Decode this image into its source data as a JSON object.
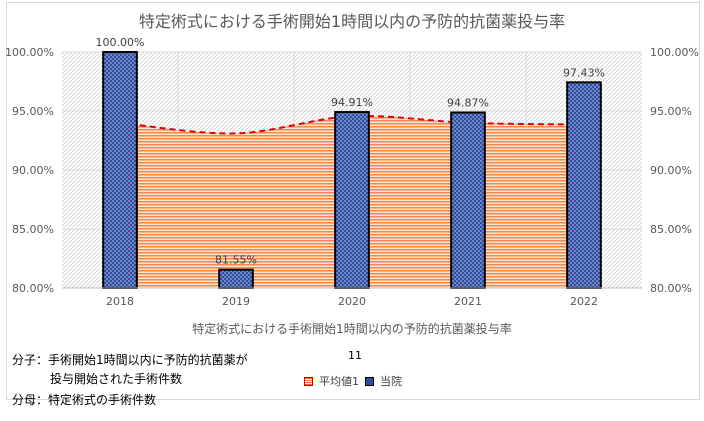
{
  "chart_data": {
    "type": "bar",
    "title": "特定術式における手術開始1時間以内の予防的抗菌薬投与率",
    "categories": [
      "2018",
      "2019",
      "2020",
      "2021",
      "2022"
    ],
    "series": [
      {
        "name": "当院",
        "kind": "bar",
        "values": [
          100.0,
          81.55,
          94.91,
          94.87,
          97.43
        ]
      },
      {
        "name": "平均値1",
        "kind": "area",
        "values": [
          94.0,
          93.1,
          94.55,
          94.0,
          93.85
        ]
      }
    ],
    "data_labels": [
      "100.00%",
      "81.55%",
      "94.91%",
      "94.87%",
      "97.43%"
    ],
    "y_ticks": [
      "100.00%",
      "95.00%",
      "90.00%",
      "85.00%",
      "80.00%"
    ],
    "ylim": [
      80,
      100
    ],
    "xlabel": "特定術式における手術開始1時間以内の予防的抗菌薬投与率",
    "ylabel": "",
    "legend_placement": "bottom",
    "grid": true,
    "colors": {
      "bar": "#2f4f9d",
      "area": "#ef8a4a",
      "line": "#e60000"
    }
  },
  "legend_number": "11",
  "notes": [
    "分子：手術開始1時間以内に予防的抗菌薬が",
    "投与開始された手術件数",
    "分母：特定術式の手術件数"
  ]
}
